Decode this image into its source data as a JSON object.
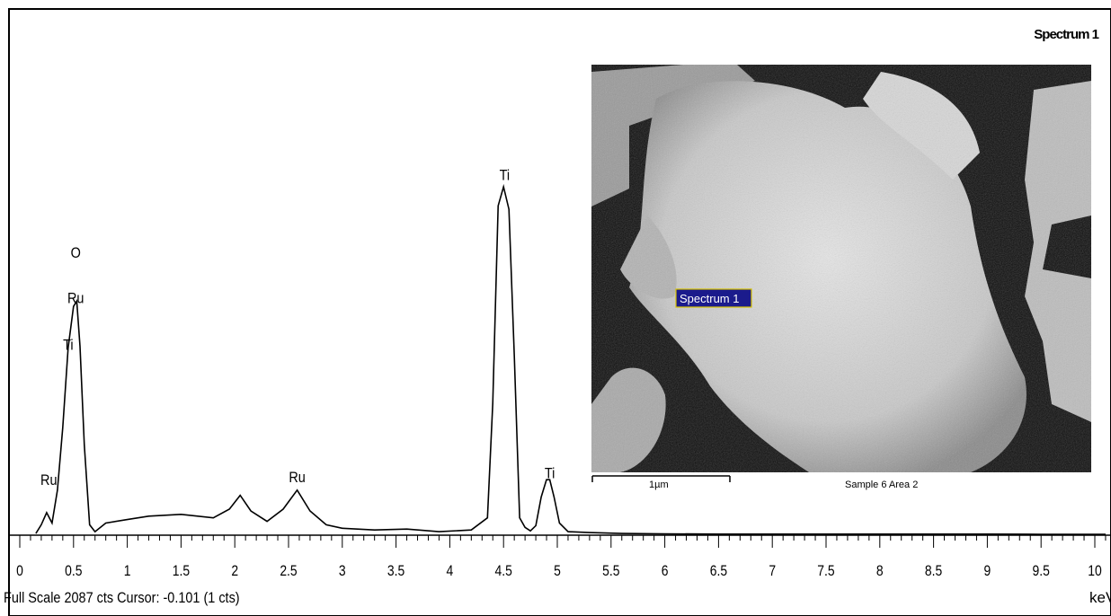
{
  "chart_data": {
    "type": "line",
    "title": "Spectrum 1",
    "xunit": "keV",
    "xlim": [
      0,
      10.1
    ],
    "ylim": [
      0,
      2087
    ],
    "xticks": [
      "0",
      "0.5",
      "1",
      "1.5",
      "2",
      "2.5",
      "3",
      "3.5",
      "4",
      "4.5",
      "5",
      "5.5",
      "6",
      "6.5",
      "7",
      "7.5",
      "8",
      "8.5",
      "9",
      "9.5",
      "10"
    ],
    "peak_labels": [
      {
        "text": "Ru",
        "x": 0.27,
        "y": 290
      },
      {
        "text": "O",
        "x": 0.52,
        "y": 1600
      },
      {
        "text": "Ru",
        "x": 0.52,
        "y": 1340
      },
      {
        "text": "Ti",
        "x": 0.45,
        "y": 1070
      },
      {
        "text": "Ru",
        "x": 2.58,
        "y": 305
      },
      {
        "text": "Ti",
        "x": 4.51,
        "y": 2050
      },
      {
        "text": "Ti",
        "x": 4.93,
        "y": 330
      }
    ],
    "series": [
      {
        "x": [
          0.15,
          0.2,
          0.25,
          0.3,
          0.35,
          0.4,
          0.45,
          0.5,
          0.53,
          0.56,
          0.6,
          0.65,
          0.7,
          0.8,
          1.0,
          1.2,
          1.5,
          1.8,
          1.95,
          2.05,
          2.15,
          2.3,
          2.45,
          2.58,
          2.7,
          2.85,
          3.0,
          3.3,
          3.6,
          3.9,
          4.2,
          4.35,
          4.4,
          4.45,
          4.5,
          4.55,
          4.6,
          4.65,
          4.7,
          4.75,
          4.8,
          4.85,
          4.9,
          4.93,
          4.97,
          5.02,
          5.1,
          5.3,
          5.6,
          6.0,
          6.5,
          7.0,
          7.5,
          8.0,
          8.5,
          9.0,
          9.5,
          10.0,
          10.1
        ],
        "y": [
          10,
          60,
          130,
          70,
          260,
          620,
          1080,
          1320,
          1350,
          1090,
          520,
          60,
          20,
          70,
          90,
          110,
          120,
          100,
          150,
          230,
          140,
          80,
          150,
          260,
          140,
          60,
          40,
          30,
          35,
          20,
          30,
          100,
          760,
          1900,
          2010,
          1880,
          1030,
          100,
          45,
          25,
          55,
          220,
          320,
          320,
          220,
          70,
          20,
          15,
          10,
          8,
          6,
          6,
          6,
          6,
          6,
          6,
          5,
          5,
          5
        ]
      }
    ],
    "status": "Full Scale 2087 cts Cursor: -0.101  (1 cts)",
    "inset": {
      "label": "Spectrum 1",
      "scale_bar": "1µm",
      "caption": "Sample 6 Area 2"
    }
  }
}
